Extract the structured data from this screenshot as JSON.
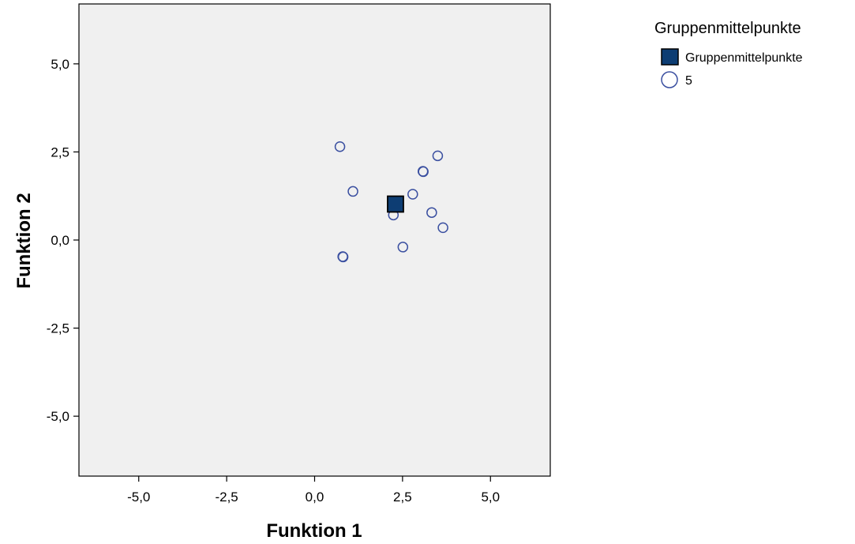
{
  "chart_data": {
    "type": "scatter",
    "xlabel": "Funktion 1",
    "ylabel": "Funktion 2",
    "xlim": [
      -6.7,
      6.7
    ],
    "ylim": [
      -6.7,
      6.7
    ],
    "xticks": [
      -5.0,
      -2.5,
      0.0,
      2.5,
      5.0
    ],
    "yticks": [
      -5.0,
      -2.5,
      0.0,
      2.5,
      5.0
    ],
    "xtick_labels": [
      "-5,0",
      "-2,5",
      "0,0",
      "2,5",
      "5,0"
    ],
    "ytick_labels": [
      "-5,0",
      "-2,5",
      "0,0",
      "2,5",
      "5,0"
    ],
    "grid": false,
    "background_color": "#f0f0f0",
    "legend": {
      "title": "Gruppenmittelpunkte",
      "placement": "right",
      "entries": [
        {
          "label": "Gruppenmittelpunkte",
          "marker": "square"
        },
        {
          "label": "5",
          "marker": "circle"
        }
      ]
    },
    "series": [
      {
        "name": "5",
        "marker": "circle",
        "color": "#3a4fa0",
        "points": [
          {
            "x": 0.72,
            "y": 2.65
          },
          {
            "x": 1.09,
            "y": 1.38
          },
          {
            "x": 3.08,
            "y": 1.95
          },
          {
            "x": 3.09,
            "y": 1.94
          },
          {
            "x": 3.5,
            "y": 2.39
          },
          {
            "x": 2.79,
            "y": 1.3
          },
          {
            "x": 2.24,
            "y": 0.71
          },
          {
            "x": 3.33,
            "y": 0.78
          },
          {
            "x": 3.65,
            "y": 0.35
          },
          {
            "x": 2.51,
            "y": -0.2
          },
          {
            "x": 0.8,
            "y": -0.47
          },
          {
            "x": 0.81,
            "y": -0.48
          }
        ]
      },
      {
        "name": "Gruppenmittelpunkte",
        "marker": "square",
        "color": "#0d3d73",
        "points": [
          {
            "x": 2.3,
            "y": 1.02
          }
        ]
      }
    ]
  }
}
